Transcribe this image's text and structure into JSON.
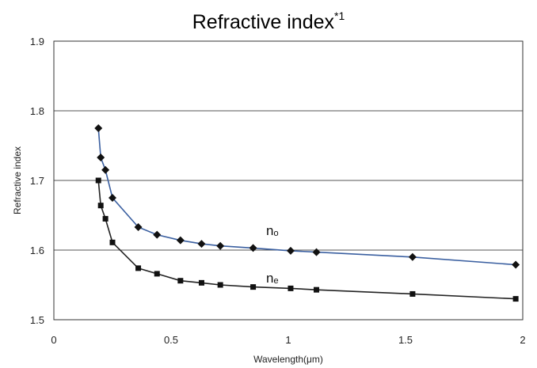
{
  "chart_data": {
    "type": "line",
    "title": "Refractive index",
    "title_superscript": "*1",
    "xlabel": "Wavelength(μm)",
    "ylabel": "Refractive index",
    "xlim": [
      0,
      2
    ],
    "ylim": [
      1.5,
      1.9
    ],
    "x_ticks": [
      0,
      0.5,
      1,
      1.5,
      2
    ],
    "x_tick_labels": [
      "0",
      "0.5",
      "1",
      "1.5",
      "2"
    ],
    "y_ticks": [
      1.5,
      1.6,
      1.7,
      1.8,
      1.9
    ],
    "y_tick_labels": [
      "1.5",
      "1.6",
      "1.7",
      "1.8",
      "1.9"
    ],
    "grid": "horizontal",
    "series": [
      {
        "name": "no",
        "label_main": "n",
        "label_sub": "o",
        "marker": "diamond",
        "line_color": "#3a5fa0",
        "marker_color": "#111111",
        "x": [
          0.19,
          0.2,
          0.22,
          0.25,
          0.36,
          0.44,
          0.54,
          0.63,
          0.71,
          0.85,
          1.01,
          1.12,
          1.53,
          1.97
        ],
        "y": [
          1.775,
          1.733,
          1.715,
          1.675,
          1.633,
          1.622,
          1.614,
          1.609,
          1.606,
          1.603,
          1.599,
          1.597,
          1.59,
          1.579
        ]
      },
      {
        "name": "ne",
        "label_main": "n",
        "label_sub": "e",
        "marker": "square",
        "line_color": "#222222",
        "marker_color": "#111111",
        "x": [
          0.19,
          0.2,
          0.22,
          0.25,
          0.36,
          0.44,
          0.54,
          0.63,
          0.71,
          0.85,
          1.01,
          1.12,
          1.53,
          1.97
        ],
        "y": [
          1.7,
          1.664,
          1.645,
          1.611,
          1.574,
          1.566,
          1.556,
          1.553,
          1.55,
          1.547,
          1.545,
          1.543,
          1.537,
          1.53
        ]
      }
    ]
  }
}
